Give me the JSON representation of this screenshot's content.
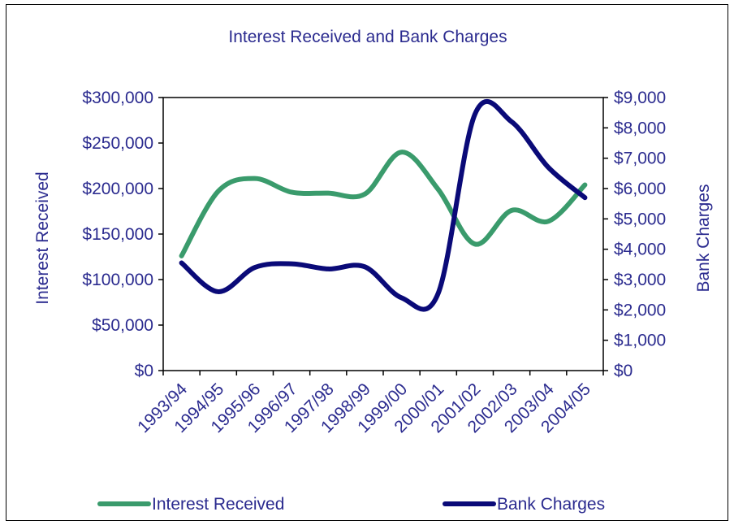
{
  "chart_data": {
    "type": "line",
    "title": "Interest Received and Bank Charges",
    "xlabel": "",
    "ylabel": "Interest Received",
    "y2label": "Bank Charges",
    "categories": [
      "1993/94",
      "1994/95",
      "1995/96",
      "1996/97",
      "1997/98",
      "1998/99",
      "1999/00",
      "2000/01",
      "2001/02",
      "2002/03",
      "2003/04",
      "2004/05"
    ],
    "yticks": [
      "$0",
      "$50,000",
      "$100,000",
      "$150,000",
      "$200,000",
      "$250,000",
      "$300,000"
    ],
    "y2ticks": [
      "$0",
      "$1,000",
      "$2,000",
      "$3,000",
      "$4,000",
      "$5,000",
      "$6,000",
      "$7,000",
      "$8,000",
      "$9,000"
    ],
    "ylim": [
      0,
      300000
    ],
    "y2lim": [
      0,
      9000
    ],
    "series": [
      {
        "name": "Interest Received",
        "axis": "left",
        "color": "#3a9b6c",
        "values": [
          126000,
          197000,
          211000,
          196000,
          195000,
          194000,
          240000,
          199000,
          139000,
          176000,
          164000,
          204000
        ]
      },
      {
        "name": "Bank Charges",
        "axis": "right",
        "color": "#0a0a78",
        "values": [
          3550,
          2600,
          3400,
          3520,
          3350,
          3420,
          2400,
          2550,
          8450,
          8200,
          6700,
          5700
        ]
      }
    ],
    "legend": "bottom",
    "grid": false
  }
}
